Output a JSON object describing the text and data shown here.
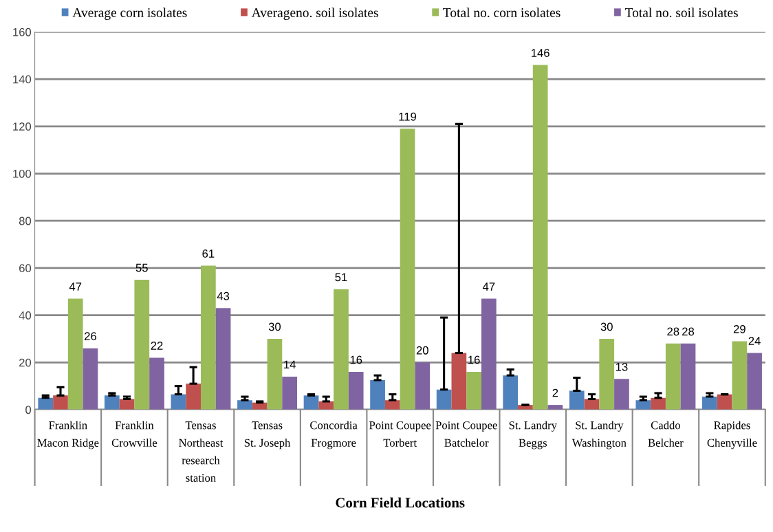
{
  "chart_data": {
    "type": "bar",
    "xlabel": "Corn Field Locations",
    "categories": [
      "Franklin\nMacon Ridge",
      "Franklin\nCrowville",
      "Tensas\nNortheast\nresearch\nstation",
      "Tensas\nSt. Joseph",
      "Concordia\nFrogmore",
      "Point Coupee\nTorbert",
      "Point Coupee\nBatchelor",
      "St. Landry\nBeggs",
      "St. Landry\nWashington",
      "Caddo\nBelcher",
      "Rapides\nChenyville"
    ],
    "series": [
      {
        "name": "Average corn isolates",
        "color": "#4f81bd",
        "values": [
          5,
          6,
          6.5,
          4,
          6,
          12.5,
          8.5,
          14.5,
          8,
          4,
          5.5
        ],
        "errors": [
          [
            5,
            6
          ],
          [
            6,
            7
          ],
          [
            6.5,
            10
          ],
          [
            4,
            5.5
          ],
          [
            6,
            6.5
          ],
          [
            12.5,
            14.5
          ],
          [
            8.5,
            39
          ],
          [
            14.5,
            17
          ],
          [
            8,
            13.5
          ],
          [
            4,
            5.5
          ],
          [
            5.5,
            7
          ]
        ]
      },
      {
        "name": "Averageno. soil isolates",
        "color": "#c0504d",
        "values": [
          6,
          4.5,
          11,
          3,
          3.5,
          4,
          24,
          2,
          4.5,
          5,
          6.5
        ],
        "errors": [
          [
            6,
            9.5
          ],
          [
            4.5,
            5.5
          ],
          [
            11,
            18
          ],
          [
            3,
            3.5
          ],
          [
            3.5,
            5.5
          ],
          [
            4,
            6.5
          ],
          [
            24,
            121
          ],
          [
            2,
            2
          ],
          [
            4.5,
            6.5
          ],
          [
            5,
            7
          ],
          [
            6.5,
            6.5
          ]
        ]
      },
      {
        "name": "Total no. corn isolates",
        "color": "#9bbb59",
        "values": [
          47,
          55,
          61,
          30,
          51,
          119,
          16,
          146,
          30,
          28,
          29
        ],
        "value_labels": [
          "47",
          "55",
          "61",
          "30",
          "51",
          "119",
          "16",
          "146",
          "30",
          "28",
          "29"
        ]
      },
      {
        "name": "Total no. soil isolates",
        "color": "#8064a2",
        "values": [
          26,
          22,
          43,
          14,
          16,
          20,
          47,
          2,
          13,
          28,
          24
        ],
        "value_labels": [
          "26",
          "22",
          "43",
          "14",
          "16",
          "20",
          "47",
          "2",
          "13",
          "28",
          "24"
        ]
      }
    ],
    "ylim": [
      0,
      160
    ],
    "yticks": [
      0,
      20,
      40,
      60,
      80,
      100,
      120,
      140,
      160
    ],
    "grid": "y",
    "legend": "top"
  }
}
